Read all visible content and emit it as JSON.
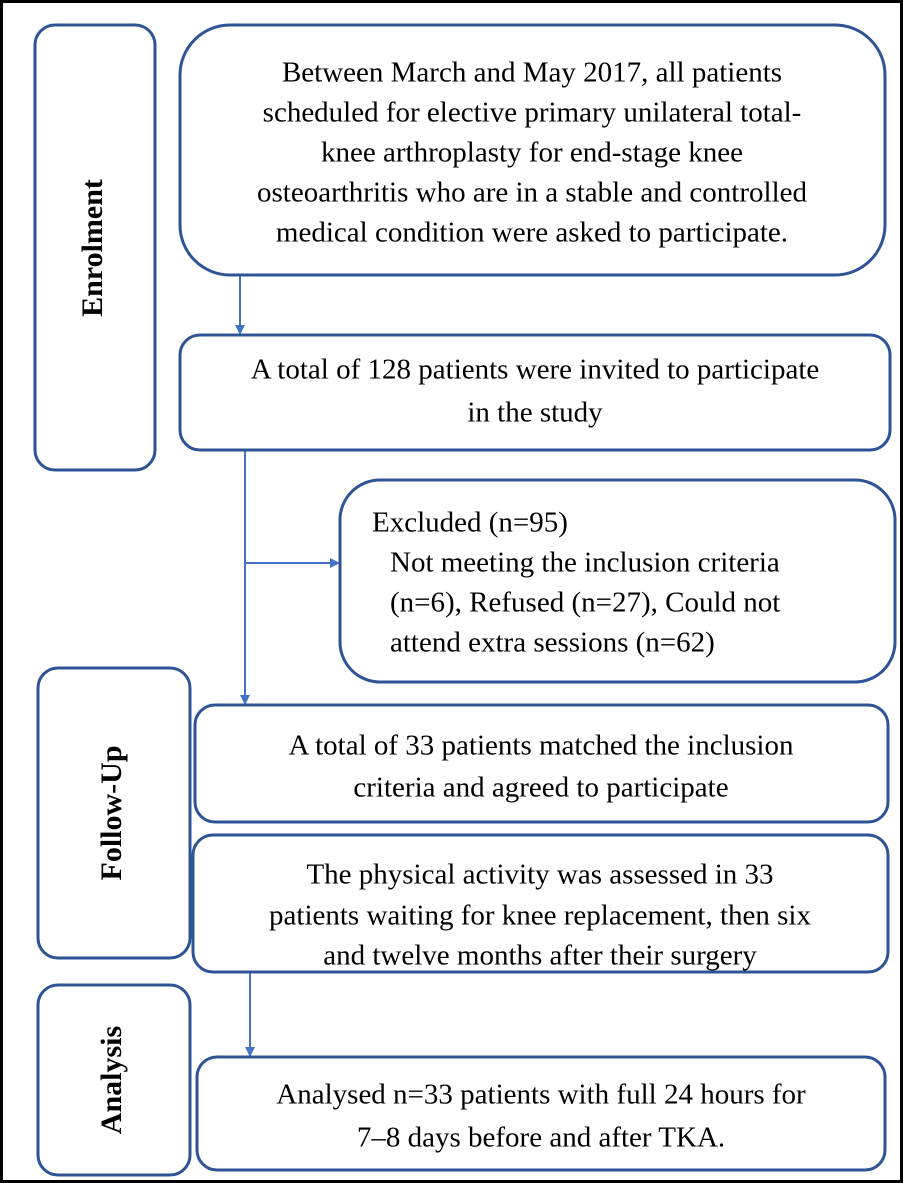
{
  "stages": [
    "Enrolment",
    "Follow-Up",
    "Analysis"
  ],
  "nodes": [
    {
      "lines": [
        "Between March and May 2017, all patients",
        "scheduled for elective primary unilateral total-",
        "knee arthroplasty for end-stage knee",
        "osteoarthritis who are in a stable and controlled",
        "medical condition were asked to participate."
      ]
    },
    {
      "lines": [
        "A total of 128 patients were invited to participate",
        "in the study"
      ]
    },
    {
      "lines": [
        "Excluded (n=95)",
        "Not meeting the inclusion criteria",
        "(n=6), Refused (n=27), Could not",
        "attend extra sessions (n=62)"
      ]
    },
    {
      "lines": [
        "A total of 33 patients matched the inclusion",
        "criteria and agreed to participate"
      ]
    },
    {
      "lines": [
        "The physical activity was assessed in 33",
        "patients waiting for knee replacement, then six",
        "and twelve months after their surgery"
      ]
    },
    {
      "lines": [
        "Analysed n=33 patients with full 24 hours for",
        "7–8 days before and after TKA."
      ]
    }
  ]
}
